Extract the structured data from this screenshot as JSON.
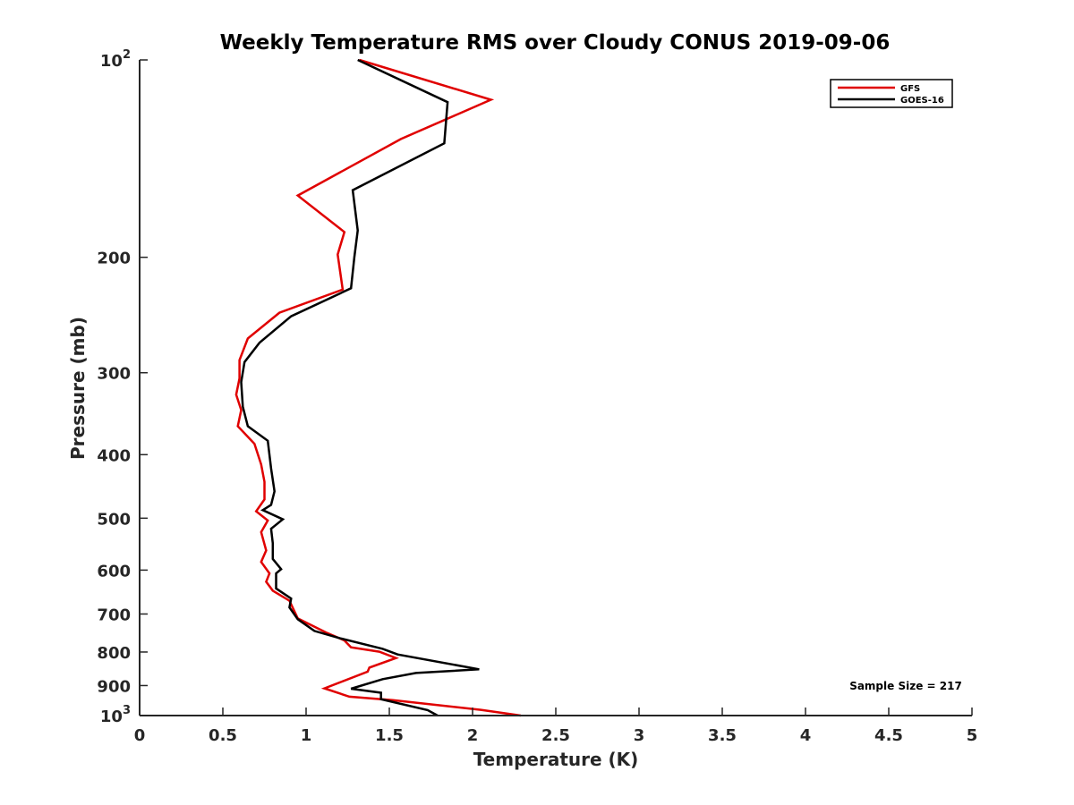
{
  "chart_data": {
    "type": "line",
    "title": "Weekly Temperature RMS over Cloudy CONUS 2019-09-06",
    "xlabel": "Temperature (K)",
    "ylabel": "Pressure (mb)",
    "xlim": [
      0,
      5
    ],
    "ylim": [
      100,
      1000
    ],
    "y_scale": "log",
    "y_reversed": true,
    "grid": false,
    "legend_position": "top-right",
    "x_ticks": [
      {
        "value": 0,
        "label": "0"
      },
      {
        "value": 0.5,
        "label": "0.5"
      },
      {
        "value": 1,
        "label": "1"
      },
      {
        "value": 1.5,
        "label": "1.5"
      },
      {
        "value": 2,
        "label": "2"
      },
      {
        "value": 2.5,
        "label": "2.5"
      },
      {
        "value": 3,
        "label": "3"
      },
      {
        "value": 3.5,
        "label": "3.5"
      },
      {
        "value": 4,
        "label": "4"
      },
      {
        "value": 4.5,
        "label": "4.5"
      },
      {
        "value": 5,
        "label": "5"
      }
    ],
    "y_ticks": [
      {
        "value": 100,
        "label": "10",
        "exponent": "2"
      },
      {
        "value": 200,
        "label": "200"
      },
      {
        "value": 300,
        "label": "300"
      },
      {
        "value": 400,
        "label": "400"
      },
      {
        "value": 500,
        "label": "500"
      },
      {
        "value": 600,
        "label": "600"
      },
      {
        "value": 700,
        "label": "700"
      },
      {
        "value": 800,
        "label": "800"
      },
      {
        "value": 900,
        "label": "900"
      },
      {
        "value": 1000,
        "label": "10",
        "exponent": "3"
      }
    ],
    "series": [
      {
        "name": "GFS",
        "color": "#e00000",
        "points": [
          {
            "x": 1.32,
            "y": 100
          },
          {
            "x": 2.11,
            "y": 115
          },
          {
            "x": 1.57,
            "y": 132
          },
          {
            "x": 0.95,
            "y": 161
          },
          {
            "x": 1.23,
            "y": 183
          },
          {
            "x": 1.19,
            "y": 198
          },
          {
            "x": 1.22,
            "y": 224
          },
          {
            "x": 0.84,
            "y": 243
          },
          {
            "x": 0.65,
            "y": 266
          },
          {
            "x": 0.6,
            "y": 287
          },
          {
            "x": 0.6,
            "y": 306
          },
          {
            "x": 0.58,
            "y": 324
          },
          {
            "x": 0.61,
            "y": 342
          },
          {
            "x": 0.59,
            "y": 362
          },
          {
            "x": 0.69,
            "y": 385
          },
          {
            "x": 0.73,
            "y": 414
          },
          {
            "x": 0.75,
            "y": 440
          },
          {
            "x": 0.75,
            "y": 468
          },
          {
            "x": 0.7,
            "y": 488
          },
          {
            "x": 0.77,
            "y": 504
          },
          {
            "x": 0.73,
            "y": 525
          },
          {
            "x": 0.76,
            "y": 560
          },
          {
            "x": 0.73,
            "y": 583
          },
          {
            "x": 0.78,
            "y": 607
          },
          {
            "x": 0.76,
            "y": 625
          },
          {
            "x": 0.8,
            "y": 645
          },
          {
            "x": 0.9,
            "y": 668
          },
          {
            "x": 0.95,
            "y": 711
          },
          {
            "x": 1.12,
            "y": 747
          },
          {
            "x": 1.23,
            "y": 768
          },
          {
            "x": 1.27,
            "y": 787
          },
          {
            "x": 1.44,
            "y": 799
          },
          {
            "x": 1.54,
            "y": 817
          },
          {
            "x": 1.38,
            "y": 845
          },
          {
            "x": 1.37,
            "y": 857
          },
          {
            "x": 1.11,
            "y": 909
          },
          {
            "x": 1.26,
            "y": 936
          },
          {
            "x": 1.52,
            "y": 947
          },
          {
            "x": 2.05,
            "y": 980
          },
          {
            "x": 2.29,
            "y": 1000
          }
        ]
      },
      {
        "name": "GOES-16",
        "color": "#000000",
        "points": [
          {
            "x": 1.31,
            "y": 100
          },
          {
            "x": 1.85,
            "y": 116
          },
          {
            "x": 1.83,
            "y": 134
          },
          {
            "x": 1.28,
            "y": 158
          },
          {
            "x": 1.31,
            "y": 182
          },
          {
            "x": 1.29,
            "y": 200
          },
          {
            "x": 1.27,
            "y": 223
          },
          {
            "x": 0.91,
            "y": 246
          },
          {
            "x": 0.72,
            "y": 270
          },
          {
            "x": 0.63,
            "y": 289
          },
          {
            "x": 0.61,
            "y": 310
          },
          {
            "x": 0.62,
            "y": 338
          },
          {
            "x": 0.65,
            "y": 362
          },
          {
            "x": 0.77,
            "y": 381
          },
          {
            "x": 0.79,
            "y": 420
          },
          {
            "x": 0.81,
            "y": 455
          },
          {
            "x": 0.79,
            "y": 477
          },
          {
            "x": 0.74,
            "y": 486
          },
          {
            "x": 0.86,
            "y": 502
          },
          {
            "x": 0.79,
            "y": 519
          },
          {
            "x": 0.8,
            "y": 546
          },
          {
            "x": 0.8,
            "y": 577
          },
          {
            "x": 0.85,
            "y": 598
          },
          {
            "x": 0.82,
            "y": 607
          },
          {
            "x": 0.82,
            "y": 640
          },
          {
            "x": 0.91,
            "y": 663
          },
          {
            "x": 0.9,
            "y": 684
          },
          {
            "x": 0.95,
            "y": 713
          },
          {
            "x": 1.05,
            "y": 743
          },
          {
            "x": 1.21,
            "y": 763
          },
          {
            "x": 1.46,
            "y": 791
          },
          {
            "x": 1.55,
            "y": 807
          },
          {
            "x": 2.04,
            "y": 850
          },
          {
            "x": 1.66,
            "y": 861
          },
          {
            "x": 1.46,
            "y": 880
          },
          {
            "x": 1.27,
            "y": 910
          },
          {
            "x": 1.45,
            "y": 923
          },
          {
            "x": 1.45,
            "y": 944
          },
          {
            "x": 1.73,
            "y": 981
          },
          {
            "x": 1.79,
            "y": 1000
          }
        ]
      }
    ],
    "annotation": "Sample Size = 217"
  }
}
